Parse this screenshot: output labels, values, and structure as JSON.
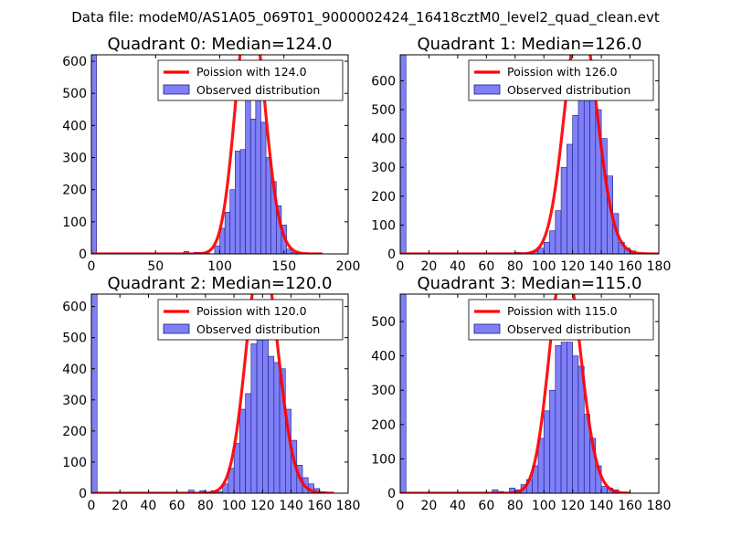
{
  "figure": {
    "suptitle": "Data file: modeM0/AS1A05_069T01_9000002424_16418cztM0_level2_quad_clean.evt"
  },
  "colors": {
    "bar_fill": "#7f7ff6",
    "bar_edge": "#1a1a88",
    "poisson_line": "#ff0000",
    "axes_edge": "#000000"
  },
  "chart_data": [
    {
      "type": "bar",
      "title": "Quadrant 0: Median=124.0",
      "median": 124.0,
      "xlim": [
        0,
        200
      ],
      "ylim": [
        0,
        620
      ],
      "xticks": [
        0,
        50,
        100,
        150,
        200
      ],
      "yticks": [
        0,
        100,
        200,
        300,
        400,
        500,
        600
      ],
      "legend": {
        "location": "upper right",
        "line_label": "Poission with 124.0",
        "bar_label": "Observed distribution"
      },
      "bin_width": 4,
      "bins": [
        {
          "x": 0,
          "count": 620
        },
        {
          "x": 72,
          "count": 8
        },
        {
          "x": 80,
          "count": 5
        },
        {
          "x": 84,
          "count": 5
        },
        {
          "x": 88,
          "count": 5
        },
        {
          "x": 96,
          "count": 25
        },
        {
          "x": 100,
          "count": 80
        },
        {
          "x": 104,
          "count": 130
        },
        {
          "x": 108,
          "count": 200
        },
        {
          "x": 112,
          "count": 320
        },
        {
          "x": 116,
          "count": 325
        },
        {
          "x": 120,
          "count": 500
        },
        {
          "x": 124,
          "count": 420
        },
        {
          "x": 128,
          "count": 570
        },
        {
          "x": 132,
          "count": 410
        },
        {
          "x": 136,
          "count": 300
        },
        {
          "x": 140,
          "count": 225
        },
        {
          "x": 144,
          "count": 150
        },
        {
          "x": 148,
          "count": 90
        },
        {
          "x": 152,
          "count": 15
        },
        {
          "x": 156,
          "count": 5
        }
      ],
      "poisson_curve": {
        "mean": 124.0,
        "total": 5530,
        "binwidth": 4,
        "x_range": [
          0,
          180
        ]
      }
    },
    {
      "type": "bar",
      "title": "Quadrant 1: Median=126.0",
      "median": 126.0,
      "xlim": [
        0,
        180
      ],
      "ylim": [
        0,
        690
      ],
      "xticks": [
        0,
        20,
        40,
        60,
        80,
        100,
        120,
        140,
        160,
        180
      ],
      "yticks": [
        0,
        100,
        200,
        300,
        400,
        500,
        600
      ],
      "legend": {
        "location": "upper right",
        "line_label": "Poission with 126.0",
        "bar_label": "Observed distribution"
      },
      "bin_width": 4,
      "bins": [
        {
          "x": 0,
          "count": 690
        },
        {
          "x": 80,
          "count": 5
        },
        {
          "x": 88,
          "count": 5
        },
        {
          "x": 92,
          "count": 10
        },
        {
          "x": 96,
          "count": 20
        },
        {
          "x": 100,
          "count": 40
        },
        {
          "x": 104,
          "count": 80
        },
        {
          "x": 108,
          "count": 150
        },
        {
          "x": 112,
          "count": 300
        },
        {
          "x": 116,
          "count": 380
        },
        {
          "x": 120,
          "count": 480
        },
        {
          "x": 124,
          "count": 550
        },
        {
          "x": 128,
          "count": 660
        },
        {
          "x": 132,
          "count": 640
        },
        {
          "x": 136,
          "count": 500
        },
        {
          "x": 140,
          "count": 400
        },
        {
          "x": 144,
          "count": 270
        },
        {
          "x": 148,
          "count": 140
        },
        {
          "x": 152,
          "count": 40
        },
        {
          "x": 156,
          "count": 20
        },
        {
          "x": 160,
          "count": 10
        }
      ],
      "poisson_curve": {
        "mean": 126.0,
        "total": 5790,
        "binwidth": 4,
        "x_range": [
          0,
          180
        ]
      }
    },
    {
      "type": "bar",
      "title": "Quadrant 2: Median=120.0",
      "median": 120.0,
      "xlim": [
        0,
        180
      ],
      "ylim": [
        0,
        640
      ],
      "xticks": [
        0,
        20,
        40,
        60,
        80,
        100,
        120,
        140,
        160,
        180
      ],
      "yticks": [
        0,
        100,
        200,
        300,
        400,
        500,
        600
      ],
      "legend": {
        "location": "upper right",
        "line_label": "Poission with 120.0",
        "bar_label": "Observed distribution"
      },
      "bin_width": 4,
      "bins": [
        {
          "x": 0,
          "count": 640
        },
        {
          "x": 68,
          "count": 10
        },
        {
          "x": 76,
          "count": 8
        },
        {
          "x": 84,
          "count": 8
        },
        {
          "x": 88,
          "count": 5
        },
        {
          "x": 92,
          "count": 30
        },
        {
          "x": 96,
          "count": 80
        },
        {
          "x": 100,
          "count": 160
        },
        {
          "x": 104,
          "count": 270
        },
        {
          "x": 108,
          "count": 320
        },
        {
          "x": 112,
          "count": 480
        },
        {
          "x": 116,
          "count": 580
        },
        {
          "x": 120,
          "count": 560
        },
        {
          "x": 124,
          "count": 440
        },
        {
          "x": 128,
          "count": 420
        },
        {
          "x": 132,
          "count": 400
        },
        {
          "x": 136,
          "count": 270
        },
        {
          "x": 140,
          "count": 170
        },
        {
          "x": 144,
          "count": 90
        },
        {
          "x": 148,
          "count": 50
        },
        {
          "x": 152,
          "count": 30
        },
        {
          "x": 156,
          "count": 15
        },
        {
          "x": 160,
          "count": 5
        }
      ],
      "poisson_curve": {
        "mean": 120.0,
        "total": 5330,
        "binwidth": 4,
        "x_range": [
          0,
          170
        ]
      }
    },
    {
      "type": "bar",
      "title": "Quadrant 3: Median=115.0",
      "median": 115.0,
      "xlim": [
        0,
        180
      ],
      "ylim": [
        0,
        580
      ],
      "xticks": [
        0,
        20,
        40,
        60,
        80,
        100,
        120,
        140,
        160,
        180
      ],
      "yticks": [
        0,
        100,
        200,
        300,
        400,
        500
      ],
      "legend": {
        "location": "upper right",
        "line_label": "Poission with 115.0",
        "bar_label": "Observed distribution"
      },
      "bin_width": 4,
      "bins": [
        {
          "x": 0,
          "count": 580
        },
        {
          "x": 64,
          "count": 10
        },
        {
          "x": 68,
          "count": 5
        },
        {
          "x": 76,
          "count": 15
        },
        {
          "x": 80,
          "count": 10
        },
        {
          "x": 84,
          "count": 25
        },
        {
          "x": 88,
          "count": 40
        },
        {
          "x": 92,
          "count": 80
        },
        {
          "x": 96,
          "count": 160
        },
        {
          "x": 100,
          "count": 240
        },
        {
          "x": 104,
          "count": 300
        },
        {
          "x": 108,
          "count": 430
        },
        {
          "x": 112,
          "count": 440
        },
        {
          "x": 116,
          "count": 440
        },
        {
          "x": 120,
          "count": 400
        },
        {
          "x": 124,
          "count": 370
        },
        {
          "x": 128,
          "count": 230
        },
        {
          "x": 132,
          "count": 160
        },
        {
          "x": 136,
          "count": 80
        },
        {
          "x": 140,
          "count": 20
        },
        {
          "x": 144,
          "count": 15
        },
        {
          "x": 148,
          "count": 10
        }
      ],
      "poisson_curve": {
        "mean": 115.0,
        "total": 4590,
        "binwidth": 4,
        "x_range": [
          0,
          160
        ]
      }
    }
  ]
}
